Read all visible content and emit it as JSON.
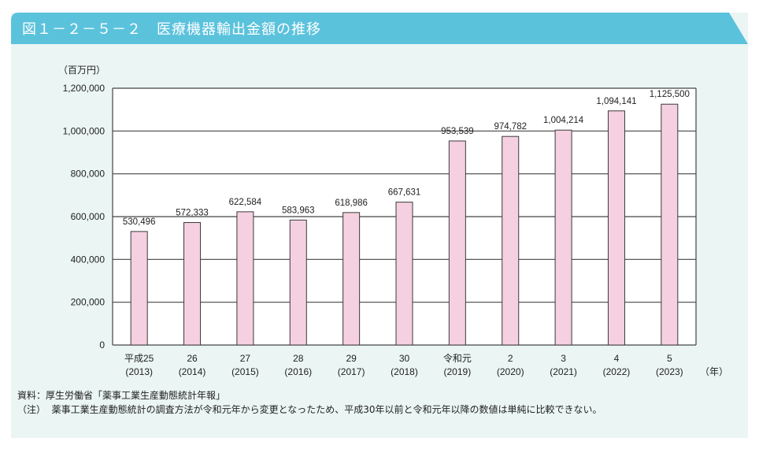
{
  "header": {
    "title": "図１－２－５－２　医療機器輸出金額の推移"
  },
  "colors": {
    "header": "#5bc2dc",
    "background": "#eaf5f4",
    "bar_fill": "#f5d0e0",
    "bar_stroke": "#3a3a3a"
  },
  "chart_data": {
    "type": "bar",
    "title": "医療機器輸出金額の推移",
    "ylabel": "（百万円）",
    "xlabel": "（年）",
    "ylim": [
      0,
      1200000
    ],
    "yticks": [
      0,
      200000,
      400000,
      600000,
      800000,
      1000000,
      1200000
    ],
    "ytick_labels": [
      "0",
      "200,000",
      "400,000",
      "600,000",
      "800,000",
      "1,000,000",
      "1,200,000"
    ],
    "grid": true,
    "categories": [
      "平成25",
      "26",
      "27",
      "28",
      "29",
      "30",
      "令和元",
      "2",
      "3",
      "4",
      "5"
    ],
    "categories_sub": [
      "(2013)",
      "(2014)",
      "(2015)",
      "(2016)",
      "(2017)",
      "(2018)",
      "(2019)",
      "(2020)",
      "(2021)",
      "(2022)",
      "(2023)"
    ],
    "values": [
      530496,
      572333,
      622584,
      583963,
      618986,
      667631,
      953539,
      974782,
      1004214,
      1094141,
      1125500
    ],
    "value_labels": [
      "530,496",
      "572,333",
      "622,584",
      "583,963",
      "618,986",
      "667,631",
      "953,539",
      "974,782",
      "1,004,214",
      "1,094,141",
      "1,125,500"
    ]
  },
  "notes": {
    "source": "資料：厚生労働省「薬事工業生産動態統計年報」",
    "note": "（注）  薬事工業生産動態統計の調査方法が令和元年から変更となったため、平成30年以前と令和元年以降の数値は単純に比較できない。"
  }
}
